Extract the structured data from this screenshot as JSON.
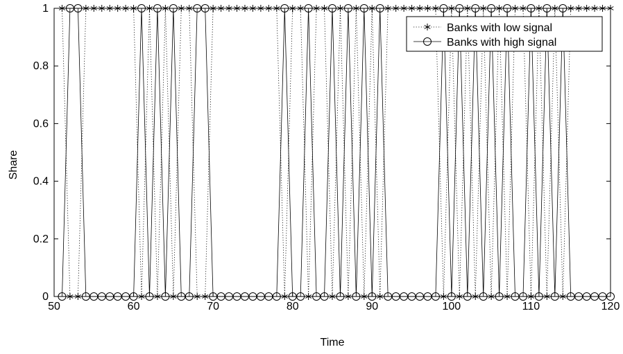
{
  "chart_data": {
    "type": "line",
    "title": "",
    "xlabel": "Time",
    "ylabel": "Share",
    "xlim": [
      50,
      120
    ],
    "ylim": [
      0,
      1
    ],
    "x_ticks": [
      50,
      60,
      70,
      80,
      90,
      100,
      110,
      120
    ],
    "y_ticks": [
      0,
      0.2,
      0.4,
      0.6,
      0.8,
      1
    ],
    "x_tick_labels": [
      "50",
      "60",
      "70",
      "80",
      "90",
      "100",
      "110",
      "120"
    ],
    "y_tick_labels": [
      "0",
      "0.2",
      "0.4",
      "0.6",
      "0.8",
      "1"
    ],
    "grid": false,
    "legend": "top-right",
    "x": [
      51,
      52,
      53,
      54,
      55,
      56,
      57,
      58,
      59,
      60,
      61,
      62,
      63,
      64,
      65,
      66,
      67,
      68,
      69,
      70,
      71,
      72,
      73,
      74,
      75,
      76,
      77,
      78,
      79,
      80,
      81,
      82,
      83,
      84,
      85,
      86,
      87,
      88,
      89,
      90,
      91,
      92,
      93,
      94,
      95,
      96,
      97,
      98,
      99,
      100,
      101,
      102,
      103,
      104,
      105,
      106,
      107,
      108,
      109,
      110,
      111,
      112,
      113,
      114,
      115,
      116,
      117,
      118,
      119,
      120
    ],
    "series": [
      {
        "name": "Banks with low signal",
        "marker": "asterisk",
        "line_style": "dotted",
        "values": [
          1,
          0,
          0,
          1,
          1,
          1,
          1,
          1,
          1,
          1,
          0,
          1,
          0,
          1,
          0,
          1,
          1,
          0,
          0,
          1,
          1,
          1,
          1,
          1,
          1,
          1,
          1,
          1,
          0,
          1,
          1,
          0,
          1,
          1,
          0,
          1,
          0,
          1,
          0,
          1,
          0,
          1,
          1,
          1,
          1,
          1,
          1,
          1,
          0,
          1,
          0,
          1,
          0,
          1,
          0,
          1,
          0,
          1,
          1,
          0,
          1,
          0,
          1,
          0,
          1,
          1,
          1,
          1,
          1,
          1
        ]
      },
      {
        "name": "Banks with high signal",
        "marker": "circle",
        "line_style": "solid",
        "values": [
          0,
          1,
          1,
          0,
          0,
          0,
          0,
          0,
          0,
          0,
          1,
          0,
          1,
          0,
          1,
          0,
          0,
          1,
          1,
          0,
          0,
          0,
          0,
          0,
          0,
          0,
          0,
          0,
          1,
          0,
          0,
          1,
          0,
          0,
          1,
          0,
          1,
          0,
          1,
          0,
          1,
          0,
          0,
          0,
          0,
          0,
          0,
          0,
          1,
          0,
          1,
          0,
          1,
          0,
          1,
          0,
          1,
          0,
          0,
          1,
          0,
          1,
          0,
          1,
          0,
          0,
          0,
          0,
          0,
          0
        ]
      }
    ]
  }
}
